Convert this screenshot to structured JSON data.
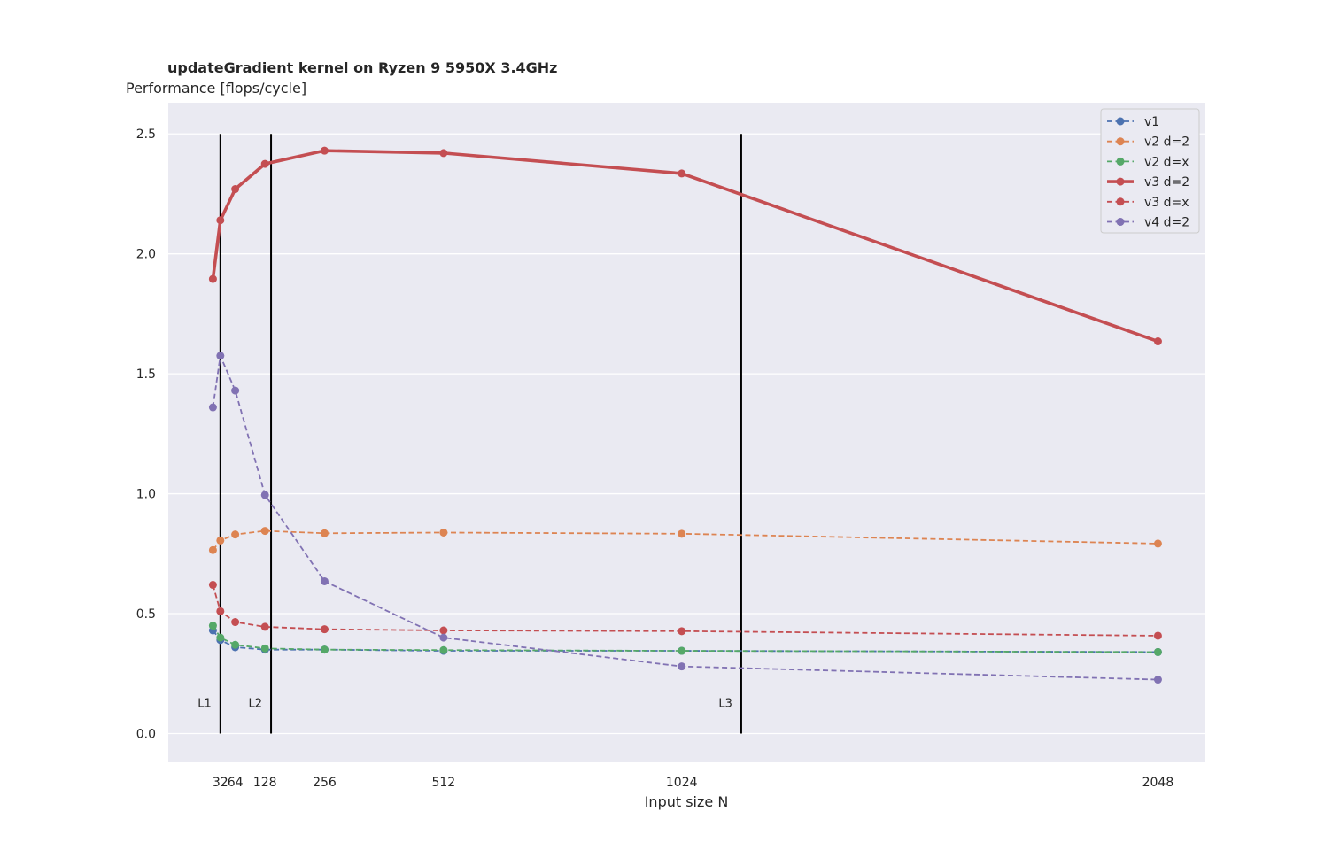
{
  "chart_data": {
    "type": "line",
    "title": "updateGradient kernel on Ryzen 9 5950X 3.4GHz",
    "ylabel": "Performance [flops/cycle]",
    "xlabel": "Input size N",
    "x": [
      16,
      32,
      64,
      128,
      256,
      512,
      1024,
      2048
    ],
    "xticks": [
      32,
      64,
      128,
      256,
      512,
      1024,
      2048
    ],
    "xtick_labels": [
      "32",
      "64",
      "128",
      "256",
      "512",
      "1024",
      "2048"
    ],
    "xlim": [
      -80,
      2150
    ],
    "ylim": [
      -0.12,
      2.63
    ],
    "yticks": [
      0.0,
      0.5,
      1.0,
      1.5,
      2.0,
      2.5
    ],
    "ytick_labels": [
      "0.0",
      "0.5",
      "1.0",
      "1.5",
      "2.0",
      "2.5"
    ],
    "grid": true,
    "legend_position": "top-right",
    "series": [
      {
        "name": "v1",
        "color": "#4c72b0",
        "style": "dashed",
        "values": [
          0.43,
          0.39,
          0.36,
          0.35,
          0.35,
          0.345,
          0.345,
          0.34
        ]
      },
      {
        "name": "v2 d=2",
        "color": "#dd8452",
        "style": "dashed",
        "values": [
          0.765,
          0.805,
          0.83,
          0.845,
          0.835,
          0.838,
          0.833,
          0.792
        ]
      },
      {
        "name": "v2 d=x",
        "color": "#55a868",
        "style": "dashed",
        "values": [
          0.45,
          0.4,
          0.37,
          0.355,
          0.35,
          0.348,
          0.345,
          0.34
        ]
      },
      {
        "name": "v3 d=2",
        "color": "#c44e52",
        "style": "solid",
        "values": [
          1.895,
          2.14,
          2.27,
          2.375,
          2.43,
          2.42,
          2.335,
          1.635
        ]
      },
      {
        "name": "v3 d=x",
        "color": "#c44e52",
        "style": "dashed",
        "values": [
          0.62,
          0.51,
          0.465,
          0.445,
          0.435,
          0.43,
          0.427,
          0.408
        ]
      },
      {
        "name": "v4 d=2",
        "color": "#8172b3",
        "style": "dashed",
        "values": [
          1.36,
          1.575,
          1.43,
          0.995,
          0.635,
          0.4,
          0.28,
          0.225
        ]
      }
    ],
    "cache_lines": [
      {
        "label": "L1",
        "x": 32
      },
      {
        "label": "L2",
        "x": 141
      },
      {
        "label": "L3",
        "x": 1152
      }
    ]
  }
}
